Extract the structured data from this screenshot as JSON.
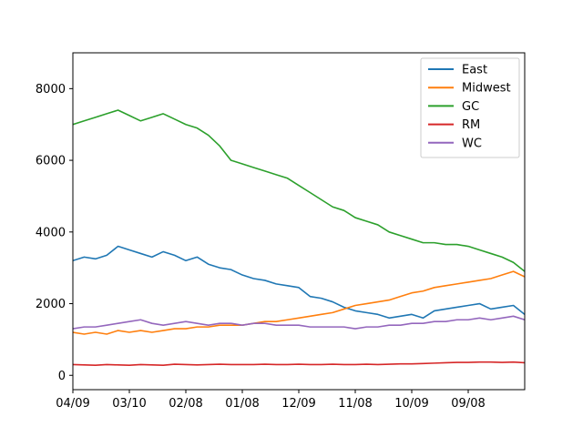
{
  "chart_data": {
    "type": "line",
    "title": "",
    "xlabel": "",
    "ylabel": "",
    "ylim": [
      -400,
      9000
    ],
    "xlim": [
      0,
      100
    ],
    "y_ticks": [
      0,
      2000,
      4000,
      6000,
      8000
    ],
    "x_ticks": [
      {
        "x": 0,
        "label": "04/09"
      },
      {
        "x": 12.5,
        "label": "03/10"
      },
      {
        "x": 25,
        "label": "02/08"
      },
      {
        "x": 37.5,
        "label": "01/08"
      },
      {
        "x": 50,
        "label": "12/09"
      },
      {
        "x": 62.5,
        "label": "11/08"
      },
      {
        "x": 75,
        "label": "10/09"
      },
      {
        "x": 87.5,
        "label": "09/08"
      }
    ],
    "grid": false,
    "legend_position": "top-right",
    "series": [
      {
        "name": "East",
        "color": "#1f77b4",
        "x": [
          0,
          2.5,
          5,
          7.5,
          10,
          12.5,
          15,
          17.5,
          20,
          22.5,
          25,
          27.5,
          30,
          32.5,
          35,
          37.5,
          40,
          42.5,
          45,
          47.5,
          50,
          52.5,
          55,
          57.5,
          60,
          62.5,
          65,
          67.5,
          70,
          72.5,
          75,
          77.5,
          80,
          82.5,
          85,
          87.5,
          90,
          92.5,
          95,
          97.5,
          100
        ],
        "values": [
          3200,
          3300,
          3250,
          3350,
          3600,
          3500,
          3400,
          3300,
          3450,
          3350,
          3200,
          3300,
          3100,
          3000,
          2950,
          2800,
          2700,
          2650,
          2550,
          2500,
          2450,
          2200,
          2150,
          2050,
          1900,
          1800,
          1750,
          1700,
          1600,
          1650,
          1700,
          1600,
          1800,
          1850,
          1900,
          1950,
          2000,
          1850,
          1900,
          1950,
          1700
        ]
      },
      {
        "name": "Midwest",
        "color": "#ff7f0e",
        "x": [
          0,
          2.5,
          5,
          7.5,
          10,
          12.5,
          15,
          17.5,
          20,
          22.5,
          25,
          27.5,
          30,
          32.5,
          35,
          37.5,
          40,
          42.5,
          45,
          47.5,
          50,
          52.5,
          55,
          57.5,
          60,
          62.5,
          65,
          67.5,
          70,
          72.5,
          75,
          77.5,
          80,
          82.5,
          85,
          87.5,
          90,
          92.5,
          95,
          97.5,
          100
        ],
        "values": [
          1200,
          1150,
          1200,
          1150,
          1250,
          1200,
          1250,
          1200,
          1250,
          1300,
          1300,
          1350,
          1350,
          1400,
          1400,
          1400,
          1450,
          1500,
          1500,
          1550,
          1600,
          1650,
          1700,
          1750,
          1850,
          1950,
          2000,
          2050,
          2100,
          2200,
          2300,
          2350,
          2450,
          2500,
          2550,
          2600,
          2650,
          2700,
          2800,
          2900,
          2750
        ]
      },
      {
        "name": "GC",
        "color": "#2ca02c",
        "x": [
          0,
          2.5,
          5,
          7.5,
          10,
          12.5,
          15,
          17.5,
          20,
          22.5,
          25,
          27.5,
          30,
          32.5,
          35,
          37.5,
          40,
          42.5,
          45,
          47.5,
          50,
          52.5,
          55,
          57.5,
          60,
          62.5,
          65,
          67.5,
          70,
          72.5,
          75,
          77.5,
          80,
          82.5,
          85,
          87.5,
          90,
          92.5,
          95,
          97.5,
          100
        ],
        "values": [
          7000,
          7100,
          7200,
          7300,
          7400,
          7250,
          7100,
          7200,
          7300,
          7150,
          7000,
          6900,
          6700,
          6400,
          6000,
          5900,
          5800,
          5700,
          5600,
          5500,
          5300,
          5100,
          4900,
          4700,
          4600,
          4400,
          4300,
          4200,
          4000,
          3900,
          3800,
          3700,
          3700,
          3650,
          3650,
          3600,
          3500,
          3400,
          3300,
          3150,
          2900
        ]
      },
      {
        "name": "RM",
        "color": "#d62728",
        "x": [
          0,
          2.5,
          5,
          7.5,
          10,
          12.5,
          15,
          17.5,
          20,
          22.5,
          25,
          27.5,
          30,
          32.5,
          35,
          37.5,
          40,
          42.5,
          45,
          47.5,
          50,
          52.5,
          55,
          57.5,
          60,
          62.5,
          65,
          67.5,
          70,
          72.5,
          75,
          77.5,
          80,
          82.5,
          85,
          87.5,
          90,
          92.5,
          95,
          97.5,
          100
        ],
        "values": [
          300,
          290,
          280,
          300,
          290,
          280,
          300,
          290,
          280,
          310,
          300,
          290,
          300,
          310,
          300,
          300,
          300,
          310,
          300,
          300,
          310,
          300,
          300,
          310,
          300,
          300,
          310,
          300,
          310,
          320,
          320,
          330,
          340,
          350,
          360,
          360,
          370,
          370,
          360,
          370,
          350
        ]
      },
      {
        "name": "WC",
        "color": "#9467bd",
        "x": [
          0,
          2.5,
          5,
          7.5,
          10,
          12.5,
          15,
          17.5,
          20,
          22.5,
          25,
          27.5,
          30,
          32.5,
          35,
          37.5,
          40,
          42.5,
          45,
          47.5,
          50,
          52.5,
          55,
          57.5,
          60,
          62.5,
          65,
          67.5,
          70,
          72.5,
          75,
          77.5,
          80,
          82.5,
          85,
          87.5,
          90,
          92.5,
          95,
          97.5,
          100
        ],
        "values": [
          1300,
          1350,
          1350,
          1400,
          1450,
          1500,
          1550,
          1450,
          1400,
          1450,
          1500,
          1450,
          1400,
          1450,
          1450,
          1400,
          1450,
          1450,
          1400,
          1400,
          1400,
          1350,
          1350,
          1350,
          1350,
          1300,
          1350,
          1350,
          1400,
          1400,
          1450,
          1450,
          1500,
          1500,
          1550,
          1550,
          1600,
          1550,
          1600,
          1650,
          1550
        ]
      }
    ]
  }
}
